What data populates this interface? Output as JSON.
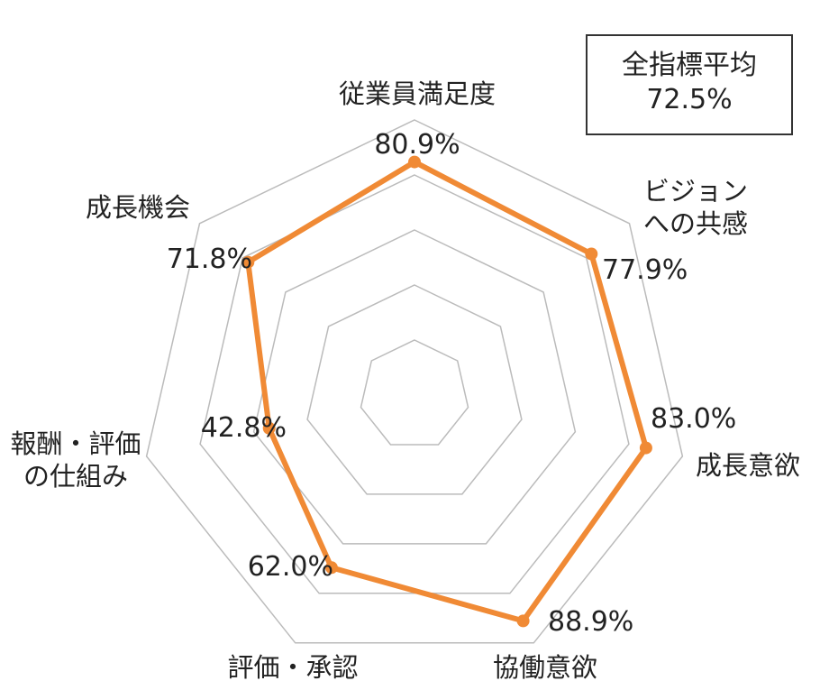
{
  "summary": {
    "label": "全指標平均",
    "value": "72.5%"
  },
  "chart_data": {
    "type": "radar",
    "axes": [
      {
        "name": [
          "従業員満足度"
        ],
        "value": 80.9,
        "label": "80.9%"
      },
      {
        "name": [
          "ビジョン",
          "への共感"
        ],
        "value": 77.9,
        "label": "77.9%"
      },
      {
        "name": [
          "成長意欲"
        ],
        "value": 83.0,
        "label": "83.0%"
      },
      {
        "name": [
          "協働意欲"
        ],
        "value": 88.9,
        "label": "88.9%"
      },
      {
        "name": [
          "評価・承認"
        ],
        "value": 62.0,
        "label": "62.0%"
      },
      {
        "name": [
          "報酬・評価",
          "の仕組み"
        ],
        "value": 42.8,
        "label": "42.8%"
      },
      {
        "name": [
          "成長機会"
        ],
        "value": 71.8,
        "label": "71.8%"
      }
    ],
    "range": [
      0,
      100
    ],
    "grid_rings": 5,
    "colors": {
      "series": "#f08a35",
      "grid": "#bbbbbb"
    }
  }
}
